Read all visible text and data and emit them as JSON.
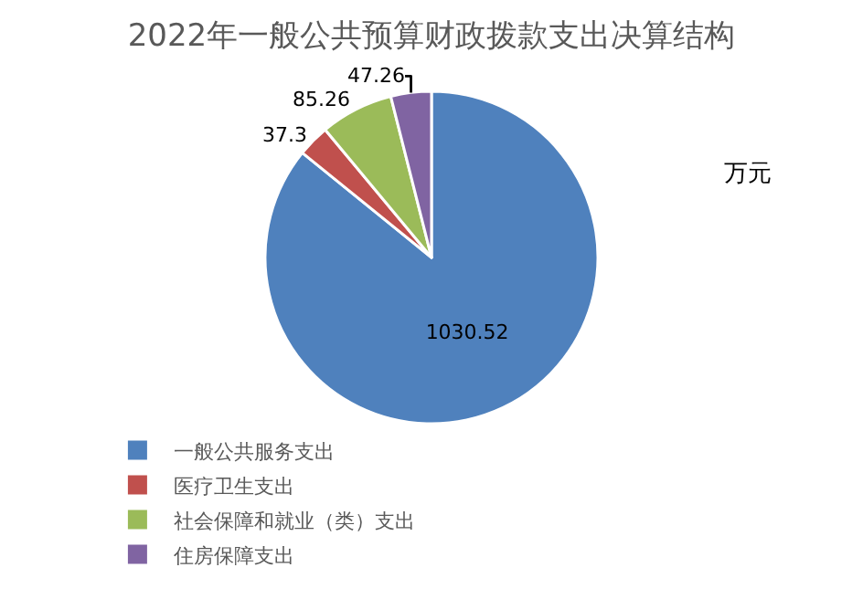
{
  "chart_data": {
    "type": "pie",
    "title": "2022年一般公共预算财政拨款支出决算结构",
    "categories": [
      "一般公共服务支出",
      "医疗卫生支出",
      "社会保障和就业（类）支出",
      "住房保障支出"
    ],
    "values": [
      1030.52,
      37.3,
      85.26,
      47.26
    ],
    "colors": [
      "#4f81bd",
      "#c0504d",
      "#9bbb59",
      "#8064a2"
    ],
    "data_labels": true,
    "annotations": [
      "万元"
    ],
    "legend": "bottom"
  }
}
